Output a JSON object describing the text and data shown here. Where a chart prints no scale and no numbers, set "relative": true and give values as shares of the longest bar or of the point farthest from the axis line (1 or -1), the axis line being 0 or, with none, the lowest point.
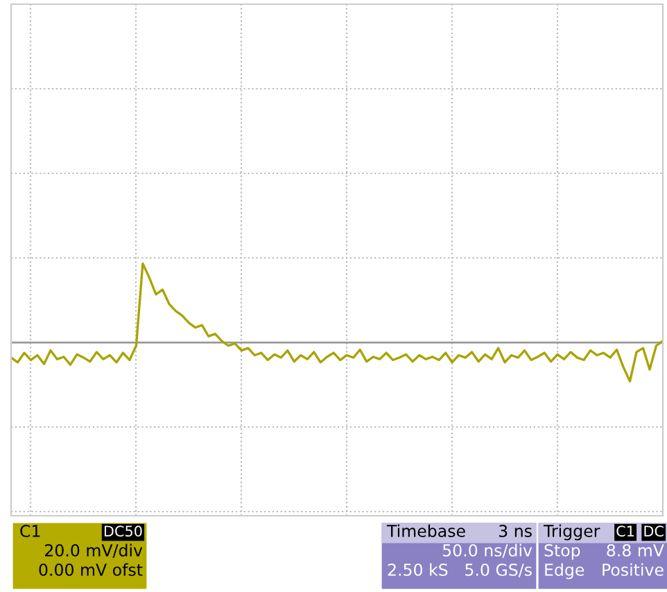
{
  "chart_data": {
    "type": "line",
    "relative": true,
    "grid": true,
    "marker": "none",
    "line_style": "solid",
    "categories": [
      null,
      null,
      null,
      null,
      null,
      null,
      null,
      null,
      null,
      null,
      null,
      null,
      null,
      null,
      null,
      null,
      null,
      null,
      null,
      null,
      null,
      null,
      null,
      null,
      null,
      null,
      null,
      null,
      null,
      null,
      null,
      null,
      null,
      null,
      null,
      null,
      null,
      null,
      null,
      null,
      null,
      null,
      null,
      null,
      null,
      null,
      null,
      null,
      null,
      null,
      null,
      null,
      null,
      null,
      null,
      null,
      null,
      null,
      null,
      null,
      null,
      null,
      null,
      null,
      null,
      null,
      null,
      null,
      null,
      null,
      null,
      null,
      null,
      null,
      null,
      null,
      null,
      null,
      null,
      null,
      null,
      null,
      null,
      null,
      null,
      null,
      null,
      null,
      null,
      null,
      null,
      null,
      null,
      null,
      null,
      null,
      null,
      null,
      null,
      null
    ],
    "series": [
      {
        "color": "#a8a400",
        "values": [
          -0.19,
          -0.25,
          -0.13,
          -0.22,
          -0.16,
          -0.27,
          -0.1,
          -0.21,
          -0.18,
          -0.28,
          -0.15,
          -0.19,
          -0.24,
          -0.12,
          -0.21,
          -0.16,
          -0.25,
          -0.13,
          -0.22,
          -0.04,
          1,
          0.82,
          0.61,
          0.67,
          0.49,
          0.4,
          0.34,
          0.25,
          0.19,
          0.22,
          0.08,
          0.11,
          0.02,
          -0.04,
          -0.01,
          -0.1,
          -0.07,
          -0.16,
          -0.13,
          -0.22,
          -0.15,
          -0.19,
          -0.1,
          -0.24,
          -0.16,
          -0.21,
          -0.12,
          -0.25,
          -0.18,
          -0.13,
          -0.22,
          -0.16,
          -0.19,
          -0.09,
          -0.24,
          -0.18,
          -0.21,
          -0.13,
          -0.22,
          -0.19,
          -0.15,
          -0.24,
          -0.16,
          -0.21,
          -0.18,
          -0.22,
          -0.13,
          -0.25,
          -0.16,
          -0.19,
          -0.12,
          -0.24,
          -0.15,
          -0.21,
          -0.07,
          -0.25,
          -0.16,
          -0.19,
          -0.1,
          -0.22,
          -0.18,
          -0.13,
          -0.24,
          -0.15,
          -0.21,
          -0.12,
          -0.19,
          -0.22,
          -0.1,
          -0.16,
          -0.13,
          -0.19,
          -0.09,
          -0.31,
          -0.49,
          -0.12,
          -0.07,
          -0.34,
          -0.04,
          0.02
        ]
      }
    ],
    "annotations": [
      "C1",
      "DC50",
      "20.0 mV/div",
      "0.00 mV ofst",
      "Timebase",
      "3 ns",
      "50.0 ns/div",
      "2.50 kS",
      "5.0 GS/s",
      "Trigger",
      "C1",
      "DC",
      "Stop",
      "8.8 mV",
      "Edge",
      "Positive"
    ]
  }
}
